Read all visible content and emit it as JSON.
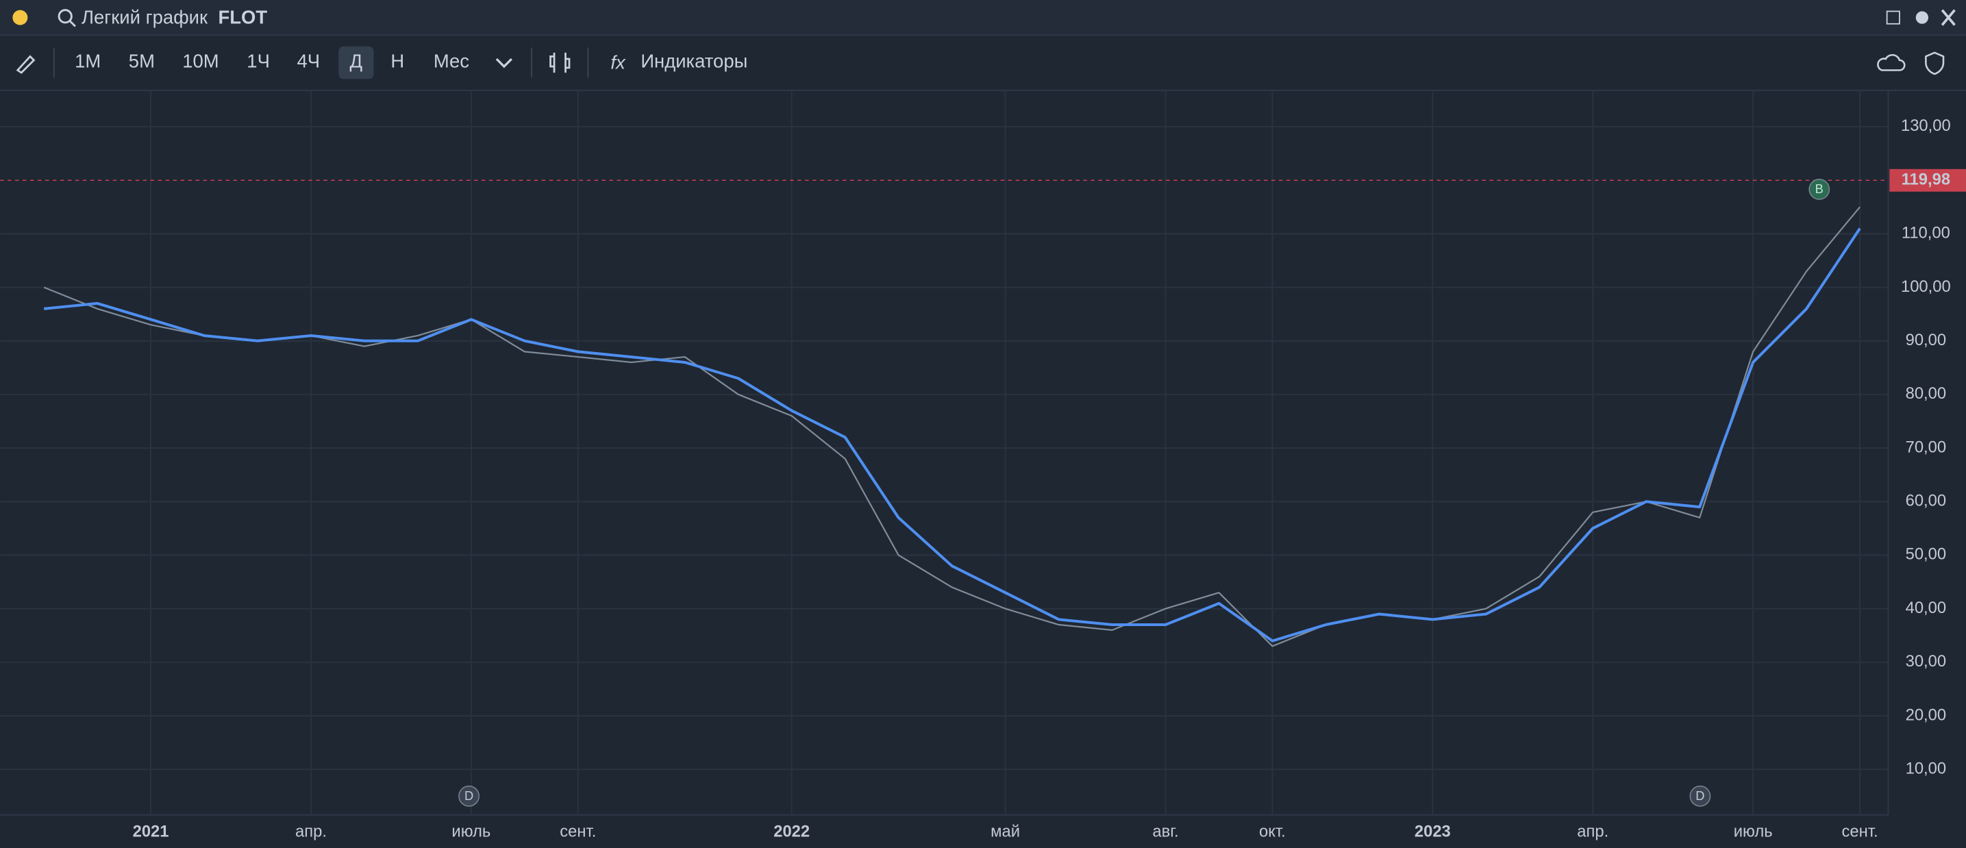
{
  "window": {
    "search_placeholder": "Легкий график",
    "symbol": "FLOT"
  },
  "toolbar": {
    "timeframes": [
      "1M",
      "5M",
      "10M",
      "1Ч",
      "4Ч",
      "Д",
      "Н",
      "Мес"
    ],
    "indicators": "Индикаторы"
  },
  "chart_data": {
    "type": "line",
    "categories": [
      null,
      null,
      "2021",
      null,
      null,
      "апр.",
      null,
      null,
      "июль",
      null,
      "сент.",
      null,
      null,
      null,
      "2022",
      null,
      null,
      null,
      "май",
      null,
      null,
      "авг.",
      null,
      "окт.",
      null,
      null,
      "2023",
      null,
      null,
      "апр.",
      null,
      null,
      "июль",
      null,
      "сент."
    ],
    "series": [
      {
        "color": "#7f8c9a",
        "values": [
          100,
          96,
          93,
          91,
          90,
          91,
          89,
          91,
          94,
          88,
          87,
          86,
          87,
          80,
          76,
          68,
          50,
          44,
          40,
          37,
          36,
          40,
          43,
          33,
          37,
          39,
          38,
          40,
          46,
          58,
          60,
          57,
          88,
          103,
          115
        ]
      },
      {
        "color": "#4f8ff0",
        "values": [
          96,
          97,
          94,
          91,
          90,
          91,
          90,
          90,
          94,
          90,
          88,
          87,
          86,
          83,
          77,
          72,
          57,
          48,
          43,
          38,
          37,
          37,
          41,
          34,
          37,
          39,
          38,
          39,
          44,
          55,
          60,
          59,
          86,
          96,
          111
        ]
      }
    ],
    "ylim": [
      1.5,
      136.8
    ],
    "yticks": [
      {
        "value": 10,
        "label": "10,00"
      },
      {
        "value": 20,
        "label": "20,00"
      },
      {
        "value": 30,
        "label": "30,00"
      },
      {
        "value": 40,
        "label": "40,00"
      },
      {
        "value": 50,
        "label": "50,00"
      },
      {
        "value": 60,
        "label": "60,00"
      },
      {
        "value": 70,
        "label": "70,00"
      },
      {
        "value": 80,
        "label": "80,00"
      },
      {
        "value": 90,
        "label": "90,00"
      },
      {
        "value": 100,
        "label": "100,00"
      },
      {
        "value": 110,
        "label": "110,00"
      },
      {
        "value": 130,
        "label": "130,00"
      }
    ],
    "last_price": {
      "value": 119.98,
      "label": "119,98"
    },
    "markers": [
      "D",
      "D",
      "B"
    ],
    "grid": true
  }
}
